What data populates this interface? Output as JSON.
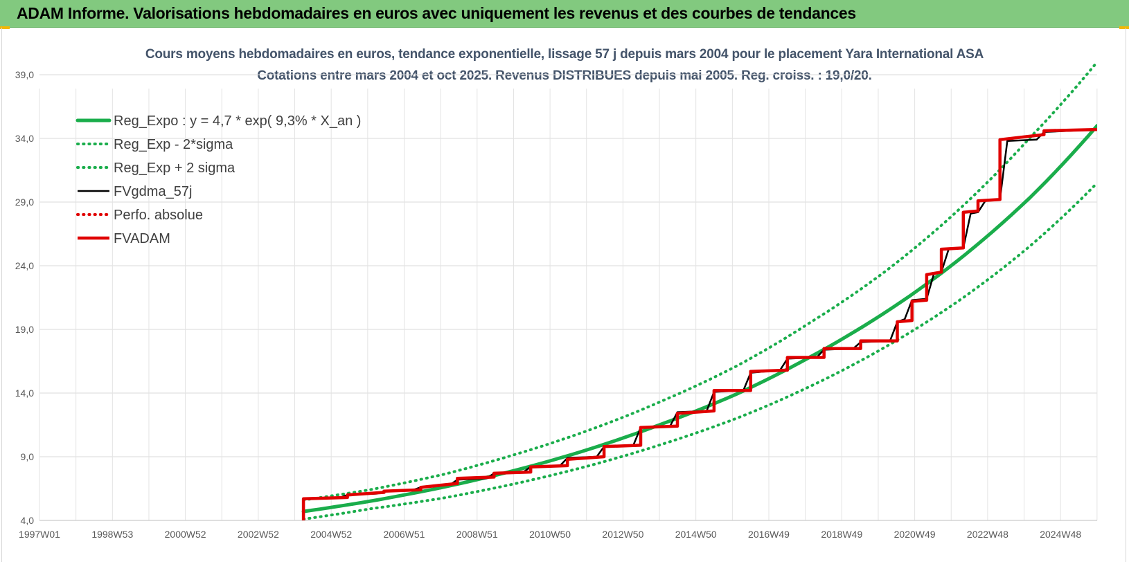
{
  "header": {
    "title": "ADAM Informe. Valorisations hebdomadaires en euros avec uniquement les revenus et des courbes de tendances"
  },
  "chart_data": {
    "type": "line",
    "title": "Cours moyens hebdomadaires en euros, tendance exponentielle, lissage 57 j depuis mars 2004 pour le placement Yara International ASA",
    "subtitle": "Cotations entre mars 2004 et oct 2025.  Revenus DISTRIBUES depuis mai 2005. Reg. croiss. : 19,0/20.",
    "xlabel": "",
    "ylabel": "",
    "ylim": [
      4.0,
      39.0
    ],
    "xlim": [
      1997.0,
      2025.85
    ],
    "y_ticks": [
      "4,0",
      "9,0",
      "14,0",
      "19,0",
      "24,0",
      "29,0",
      "34,0",
      "39,0"
    ],
    "x_ticks": [
      "1997W01",
      "1998W53",
      "2000W52",
      "2002W52",
      "2004W52",
      "2006W51",
      "2008W51",
      "2010W50",
      "2012W50",
      "2014W50",
      "2016W49",
      "2018W49",
      "2020W49",
      "2022W48",
      "2024W48"
    ],
    "grid": true,
    "legend_position": "top-left",
    "series": [
      {
        "name": "Reg_Expo : y = 4,7 * exp( 9,3% *  X_an )",
        "color": "#1aad4b",
        "style": "solid",
        "x": [
          2004.2,
          2006,
          2008,
          2010,
          2012,
          2014,
          2016,
          2018,
          2020,
          2022,
          2024,
          2025.85
        ],
        "y": [
          4.7,
          5.5,
          6.6,
          7.95,
          9.6,
          11.6,
          13.9,
          16.8,
          20.2,
          24.3,
          29.3,
          35.0
        ]
      },
      {
        "name": "Reg_Exp - 2*sigma",
        "color": "#1aad4b",
        "style": "dotted",
        "x": [
          2004.2,
          2006,
          2008,
          2010,
          2012,
          2014,
          2016,
          2018,
          2020,
          2022,
          2024,
          2025.85
        ],
        "y": [
          4.1,
          4.9,
          5.75,
          6.9,
          8.3,
          10.0,
          12.0,
          14.5,
          17.5,
          21.1,
          25.5,
          30.5
        ]
      },
      {
        "name": "Reg_Exp + 2 sigma",
        "color": "#1aad4b",
        "style": "dotted",
        "x": [
          2004.2,
          2006,
          2008,
          2010,
          2012,
          2014,
          2016,
          2018,
          2020,
          2022,
          2024,
          2025.85
        ],
        "y": [
          5.6,
          6.4,
          7.6,
          9.2,
          11.1,
          13.4,
          16.1,
          19.5,
          23.4,
          28.2,
          34.0,
          40.0
        ]
      },
      {
        "name": "FVgdma_57j",
        "color": "#000000",
        "style": "solid",
        "x": [
          2004.2,
          2005.2,
          2005.4,
          2006.2,
          2006.4,
          2007.2,
          2007.4,
          2008.2,
          2008.4,
          2009.2,
          2009.4,
          2010.2,
          2010.4,
          2011.2,
          2011.4,
          2012.2,
          2012.4,
          2013.2,
          2013.4,
          2014.2,
          2014.4,
          2015.2,
          2015.4,
          2016.2,
          2016.4,
          2017.2,
          2017.4,
          2018.2,
          2018.4,
          2019.2,
          2019.4,
          2020.2,
          2020.4,
          2020.6,
          2020.8,
          2021.2,
          2021.4,
          2021.6,
          2021.8,
          2022.2,
          2022.4,
          2022.6,
          2022.8,
          2023.2,
          2023.4,
          2024.2,
          2024.4,
          2025.85
        ],
        "y": [
          5.7,
          5.8,
          6.0,
          6.1,
          6.3,
          6.4,
          6.6,
          6.8,
          7.2,
          7.3,
          7.7,
          7.8,
          8.2,
          8.3,
          8.9,
          9.0,
          9.8,
          9.9,
          11.3,
          11.4,
          12.5,
          12.6,
          14.1,
          14.2,
          15.6,
          15.8,
          16.7,
          16.8,
          17.4,
          17.5,
          18.0,
          18.1,
          19.6,
          19.8,
          21.3,
          21.4,
          23.4,
          23.5,
          25.3,
          25.4,
          28.1,
          28.2,
          29.1,
          29.2,
          33.8,
          33.9,
          34.5,
          34.7
        ]
      },
      {
        "name": "Perfo. absolue",
        "color": "#e00000",
        "style": "dotted",
        "x": [],
        "y": []
      },
      {
        "name": "FVADAM",
        "color": "#e00000",
        "style": "solid",
        "x": [
          2004.2,
          2004.2,
          2005.4,
          2005.4,
          2006.4,
          2006.4,
          2007.4,
          2007.4,
          2008.4,
          2008.4,
          2009.4,
          2009.4,
          2010.4,
          2010.4,
          2011.4,
          2011.4,
          2012.4,
          2012.4,
          2013.4,
          2013.4,
          2014.4,
          2014.4,
          2015.4,
          2015.4,
          2016.4,
          2016.4,
          2017.4,
          2017.4,
          2018.4,
          2018.4,
          2019.4,
          2019.4,
          2020.4,
          2020.4,
          2020.8,
          2020.8,
          2021.2,
          2021.2,
          2021.6,
          2021.6,
          2022.2,
          2022.2,
          2022.6,
          2022.6,
          2023.2,
          2023.2,
          2024.4,
          2024.4,
          2025.85
        ],
        "y": [
          4.0,
          5.7,
          5.8,
          6.0,
          6.2,
          6.3,
          6.4,
          6.6,
          6.9,
          7.3,
          7.4,
          7.7,
          7.8,
          8.2,
          8.3,
          8.8,
          9.0,
          9.8,
          9.9,
          11.3,
          11.4,
          12.4,
          12.6,
          14.2,
          14.2,
          15.7,
          15.8,
          16.8,
          16.8,
          17.5,
          17.5,
          18.1,
          18.1,
          19.6,
          19.7,
          21.2,
          21.3,
          23.3,
          23.5,
          25.3,
          25.4,
          28.2,
          28.3,
          29.1,
          29.2,
          33.9,
          34.3,
          34.6,
          34.7
        ]
      }
    ]
  }
}
